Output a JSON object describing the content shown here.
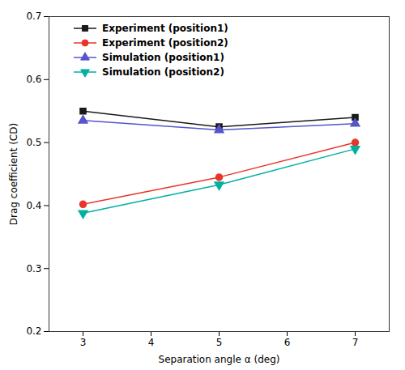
{
  "chart_data": {
    "type": "line",
    "x": [
      3,
      5,
      7
    ],
    "xlabel": "Separation angle α (deg)",
    "ylabel": "Drag coefficient (CD)",
    "xlim": [
      2.5,
      7.5
    ],
    "ylim": [
      0.2,
      0.7
    ],
    "xticks": [
      3,
      4,
      5,
      6,
      7
    ],
    "yticks": [
      0.2,
      0.3,
      0.4,
      0.5,
      0.6,
      0.7
    ],
    "grid": false,
    "legend": "upper left",
    "series": [
      {
        "name": "Experiment (position1)",
        "color": "#1a1a1a",
        "marker": "square",
        "values": [
          0.55,
          0.525,
          0.54
        ]
      },
      {
        "name": "Experiment (position2)",
        "color": "#e8362a",
        "marker": "circle",
        "values": [
          0.402,
          0.445,
          0.5
        ]
      },
      {
        "name": "Simulation (position1)",
        "color": "#5555cc",
        "marker": "triangle-up",
        "values": [
          0.535,
          0.52,
          0.53
        ]
      },
      {
        "name": "Simulation (position2)",
        "color": "#00b0a0",
        "marker": "triangle-down",
        "values": [
          0.388,
          0.433,
          0.49
        ]
      }
    ]
  }
}
